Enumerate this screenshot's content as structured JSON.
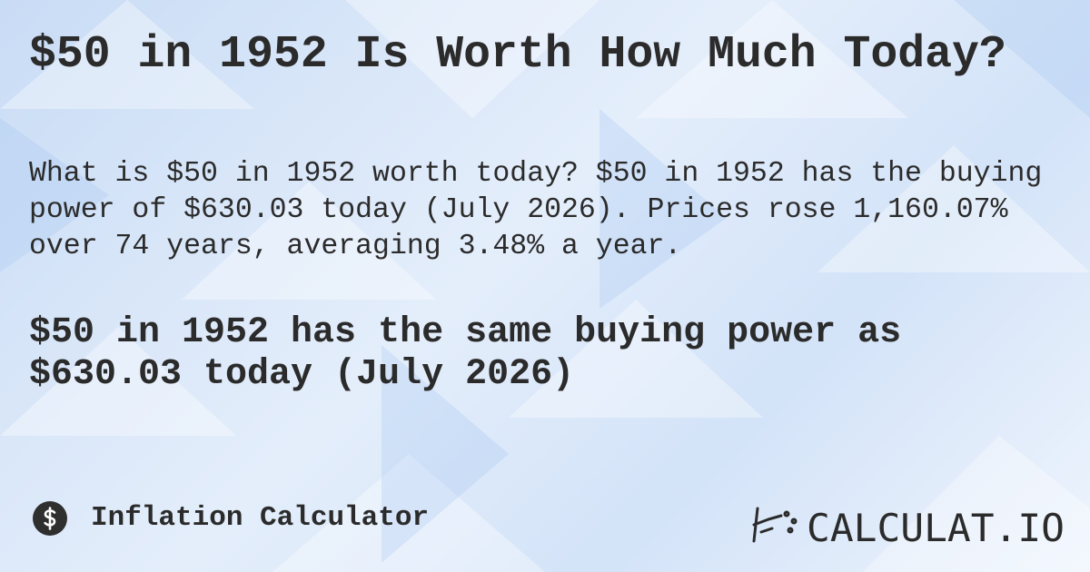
{
  "header": {
    "title": "$50 in 1952 Is Worth How Much Today?"
  },
  "summary": "What is $50 in 1952 worth today? $50 in 1952 has the buying power of $630.03 today (July 2026). Prices rose 1,160.07% over 74 years, averaging 3.48% a year.",
  "highlight": "$50 in 1952 has the same buying power as $630.03 today (July 2026)",
  "footer": {
    "calculator": "Inflation Calculator",
    "brand": "CALCULAT.IO"
  }
}
